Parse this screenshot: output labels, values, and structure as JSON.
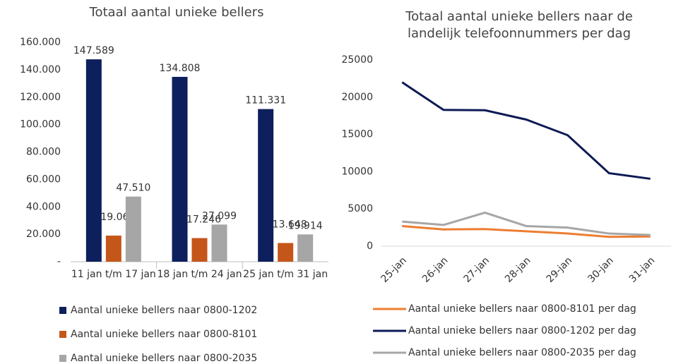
{
  "chart_data": [
    {
      "type": "bar",
      "title": "Totaal aantal unieke bellers",
      "categories": [
        "11 jan t/m 17 jan",
        "18 jan t/m 24 jan",
        "25 jan t/m 31 jan"
      ],
      "series": [
        {
          "name": "Aantal unieke bellers naar 0800-1202",
          "color": "#0d1f5c",
          "values": [
            147589,
            134808,
            111331
          ],
          "value_labels": [
            "147.589",
            "134.808",
            "111.331"
          ]
        },
        {
          "name": "Aantal unieke bellers naar 0800-8101",
          "color": "#c5561a",
          "values": [
            19067,
            17246,
            13648
          ],
          "value_labels": [
            "19.067",
            "17.246",
            "13.648"
          ]
        },
        {
          "name": "Aantal unieke bellers naar 0800-2035",
          "color": "#a6a6a6",
          "values": [
            47510,
            27099,
            19914
          ],
          "value_labels": [
            "47.510",
            "27.099",
            "19.914"
          ]
        }
      ],
      "ylim": [
        0,
        160000
      ],
      "yticks": [
        {
          "value": 0,
          "label": "-"
        },
        {
          "value": 20000,
          "label": "20.000"
        },
        {
          "value": 40000,
          "label": "40.000"
        },
        {
          "value": 60000,
          "label": "60.000"
        },
        {
          "value": 80000,
          "label": "80.000"
        },
        {
          "value": 100000,
          "label": "100.000"
        },
        {
          "value": 120000,
          "label": "120.000"
        },
        {
          "value": 140000,
          "label": "140.000"
        },
        {
          "value": 160000,
          "label": "160.000"
        }
      ]
    },
    {
      "type": "line",
      "title": "Totaal aantal unieke bellers naar de landelijk telefoonnummers per dag",
      "categories": [
        "25-jan",
        "26-jan",
        "27-jan",
        "28-jan",
        "29-jan",
        "30-jan",
        "31-jan"
      ],
      "series": [
        {
          "name": "Aantal unieke bellers naar 0800-8101 per dag",
          "color": "#ed7d31",
          "values": [
            2700,
            2250,
            2300,
            2000,
            1700,
            1250,
            1300
          ]
        },
        {
          "name": "Aantal unieke bellers naar 0800-1202 per dag",
          "color": "#0d1a55",
          "values": [
            22000,
            18300,
            18250,
            17000,
            14900,
            9800,
            9050
          ]
        },
        {
          "name": "Aantal unieke bellers naar 0800-2035 per dag",
          "color": "#a6a6a6",
          "values": [
            3300,
            2850,
            4500,
            2700,
            2500,
            1700,
            1500
          ]
        }
      ],
      "ylim": [
        0,
        25000
      ],
      "yticks": [
        0,
        5000,
        10000,
        15000,
        20000,
        25000
      ]
    }
  ]
}
